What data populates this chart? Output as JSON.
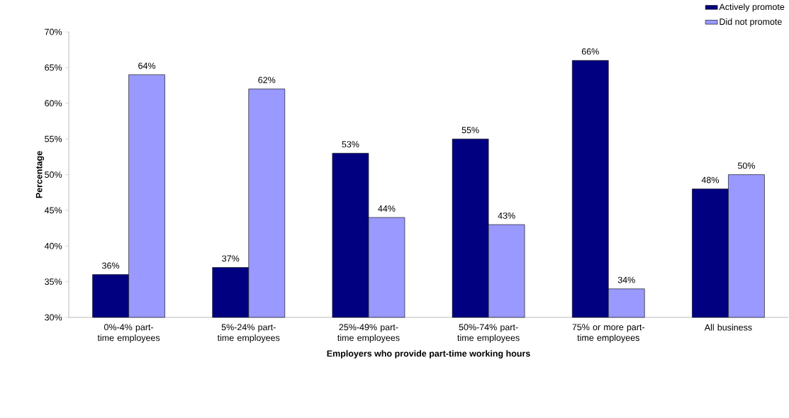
{
  "chart_data": {
    "type": "bar",
    "xlabel": "Employers who provide part-time working hours",
    "ylabel": "Percentage",
    "categories": [
      "0%-4% part-time employees",
      "5%-24% part-time employees",
      "25%-49% part-time employees",
      "50%-74% part-time employees",
      "75% or more part-time employees",
      "All business"
    ],
    "series": [
      {
        "name": "Actively promote",
        "color": "#000080",
        "values": [
          36,
          37,
          53,
          55,
          66,
          48
        ],
        "value_labels": [
          "36%",
          "37%",
          "53%",
          "55%",
          "66%",
          "48%"
        ]
      },
      {
        "name": "Did not promote",
        "color": "#9999ff",
        "values": [
          64,
          62,
          44,
          43,
          34,
          50
        ],
        "value_labels": [
          "64%",
          "62%",
          "44%",
          "43%",
          "34%",
          "50%"
        ]
      }
    ],
    "ylim": [
      30,
      70
    ],
    "yticks": [
      {
        "value": 30,
        "label": "30%"
      },
      {
        "value": 35,
        "label": "35%"
      },
      {
        "value": 40,
        "label": "40%"
      },
      {
        "value": 45,
        "label": "45%"
      },
      {
        "value": 50,
        "label": "50%"
      },
      {
        "value": 55,
        "label": "55%"
      },
      {
        "value": 60,
        "label": "60%"
      },
      {
        "value": 65,
        "label": "65%"
      },
      {
        "value": 70,
        "label": "70%"
      }
    ],
    "grid": false,
    "legend": "top right"
  }
}
